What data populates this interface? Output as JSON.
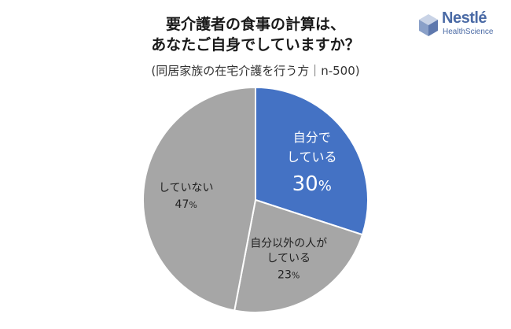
{
  "header": {
    "title_line1": "要介護者の食事の計算は、",
    "title_line2": "あなたご自身でしていますか？",
    "subtitle": "(同居家族の在宅介護を行う方｜n-500)"
  },
  "logo": {
    "word": "Nestlé",
    "sub": "HealthScience",
    "color": "#4a6aa5"
  },
  "chart_data": {
    "type": "pie",
    "slices": [
      {
        "label_lines": [
          "自分で",
          "している"
        ],
        "value": 30,
        "value_text": "30",
        "unit": "%",
        "color": "#4472c4",
        "text_color": "#ffffff"
      },
      {
        "label_lines": [
          "自分以外の人が",
          "している"
        ],
        "value": 23,
        "value_text": "23",
        "unit": "%",
        "color": "#a6a6a6",
        "text_color": "#222222"
      },
      {
        "label_lines": [
          "していない"
        ],
        "value": 47,
        "value_text": "47",
        "unit": "%",
        "color": "#a6a6a6",
        "text_color": "#222222"
      }
    ],
    "start": "12 o'clock",
    "direction": "clockwise",
    "border_color": "#ffffff"
  }
}
